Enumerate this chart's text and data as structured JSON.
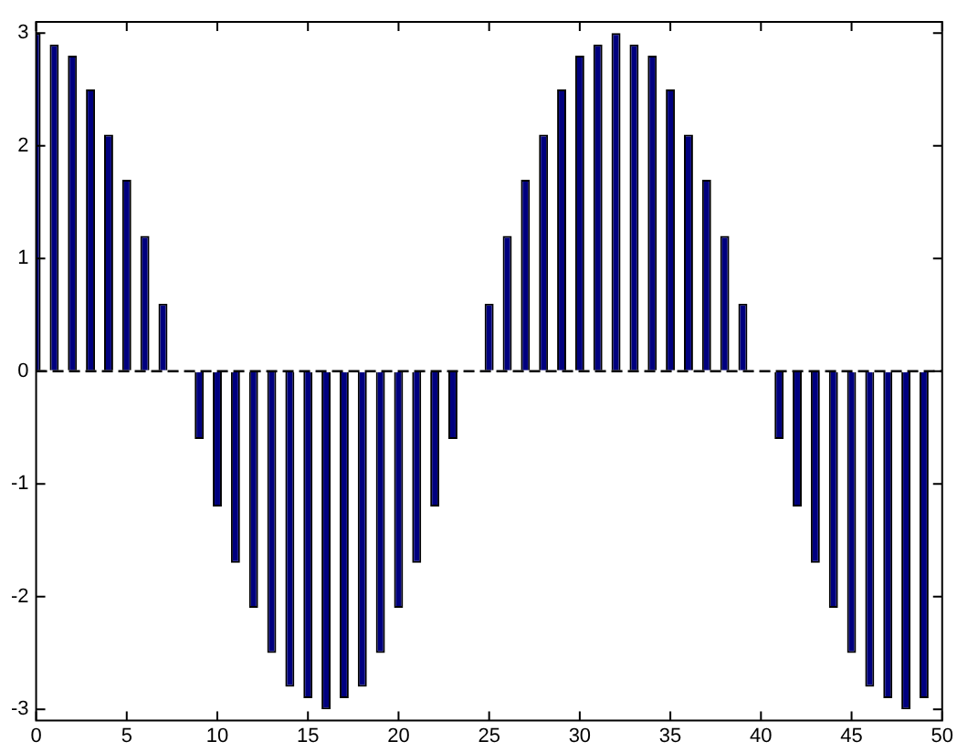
{
  "chart_data": {
    "type": "bar",
    "x": [
      0,
      1,
      2,
      3,
      4,
      5,
      6,
      7,
      8,
      9,
      10,
      11,
      12,
      13,
      14,
      15,
      16,
      17,
      18,
      19,
      20,
      21,
      22,
      23,
      24,
      25,
      26,
      27,
      28,
      29,
      30,
      31,
      32,
      33,
      34,
      35,
      36,
      37,
      38,
      39,
      40,
      41,
      42,
      43,
      44,
      45,
      46,
      47,
      48,
      49
    ],
    "values": [
      3,
      2.9,
      2.8,
      2.5,
      2.1,
      1.7,
      1.2,
      0.6,
      0,
      -0.6,
      -1.2,
      -1.7,
      -2.1,
      -2.5,
      -2.8,
      -2.9,
      -3,
      -2.9,
      -2.8,
      -2.5,
      -2.1,
      -1.7,
      -1.2,
      -0.6,
      0,
      0.6,
      1.2,
      1.7,
      2.1,
      2.5,
      2.8,
      2.9,
      3,
      2.9,
      2.8,
      2.5,
      2.1,
      1.7,
      1.2,
      0.6,
      0,
      -0.6,
      -1.2,
      -1.7,
      -2.1,
      -2.5,
      -2.8,
      -2.9,
      -3,
      -2.9
    ],
    "color": "#00007f",
    "xlim": [
      0,
      50
    ],
    "xticks": [
      0,
      5,
      10,
      15,
      20,
      25,
      30,
      35,
      40,
      45,
      50
    ],
    "ylim": [
      -3.1,
      3.1
    ],
    "yticks": [
      -3,
      -2,
      -1,
      0,
      1,
      2,
      3
    ],
    "grid": false,
    "legend": false,
    "ref_lines": [
      {
        "axis": "y",
        "value": 0,
        "color": "#000000",
        "line_style": "dashed"
      }
    ]
  }
}
